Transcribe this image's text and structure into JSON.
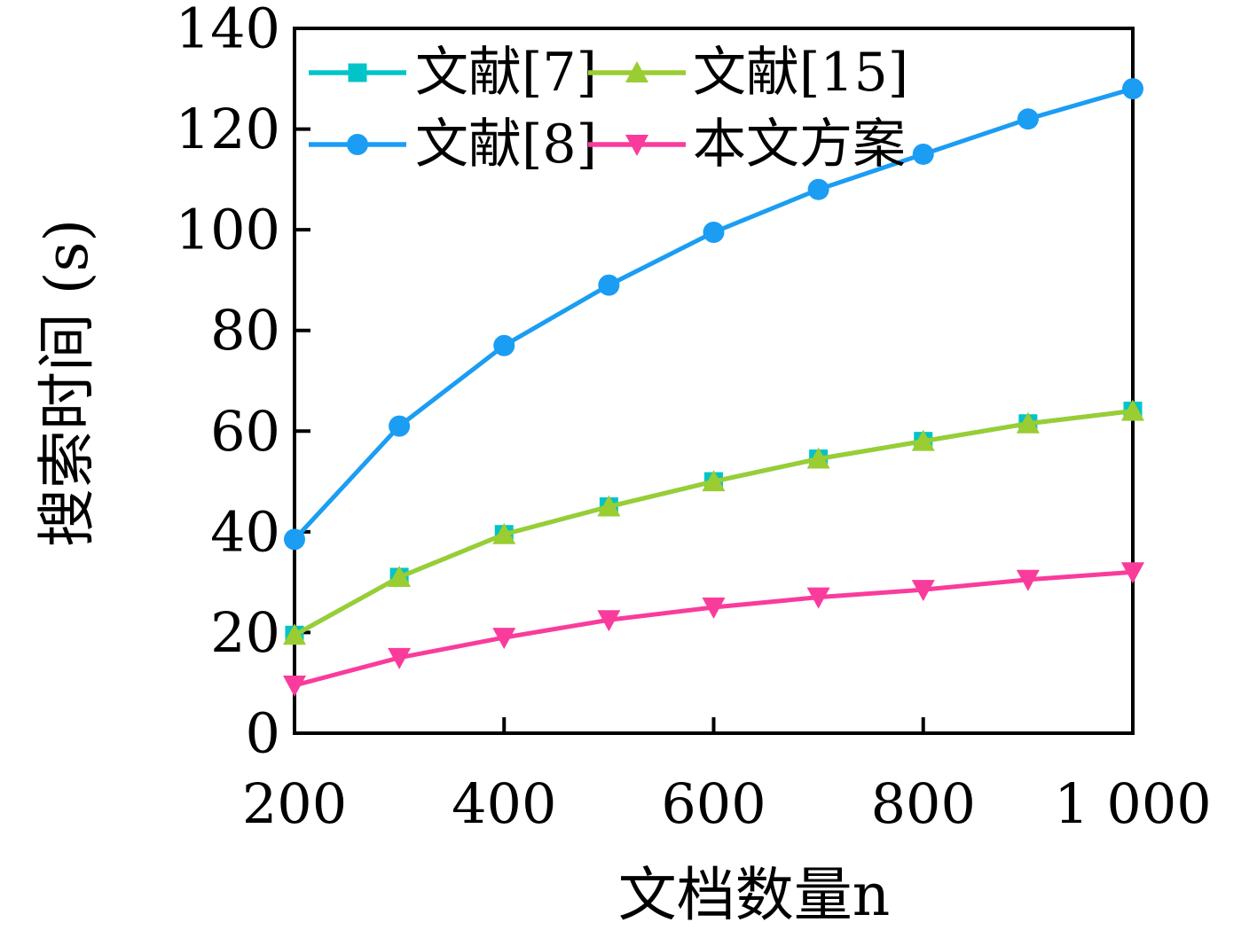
{
  "chart_data": {
    "type": "line",
    "title": "",
    "xlabel": "文档数量n",
    "ylabel": "搜索时间 (s)",
    "xlim": [
      200,
      1000
    ],
    "ylim": [
      0,
      140
    ],
    "grid": false,
    "legend_position": "top-left-inside",
    "legend_columns": 2,
    "legend_order": [
      0,
      2,
      1,
      3
    ],
    "x": [
      200,
      300,
      400,
      500,
      600,
      700,
      800,
      900,
      1000
    ],
    "x_ticks": [
      200,
      400,
      600,
      800,
      1000
    ],
    "x_tick_labels": [
      "200",
      "400",
      "600",
      "800",
      "1 000"
    ],
    "y_ticks": [
      0,
      20,
      40,
      60,
      80,
      100,
      120,
      140
    ],
    "y_tick_labels": [
      "0",
      "20",
      "40",
      "60",
      "80",
      "100",
      "120",
      "140"
    ],
    "axis_color": "#000000",
    "background": "#FFFFFF",
    "series": [
      {
        "name": "文献[7]",
        "marker": "square",
        "color": "#00C4C8",
        "values": [
          19.5,
          31,
          39.5,
          45,
          50,
          54.5,
          58,
          61.5,
          64
        ]
      },
      {
        "name": "文献[8]",
        "marker": "circle",
        "color": "#1B9DF3",
        "values": [
          38.5,
          61,
          77,
          89,
          99.5,
          108,
          115,
          122,
          128
        ]
      },
      {
        "name": "文献[15]",
        "marker": "triangle-up",
        "color": "#9ACD32",
        "values": [
          19.5,
          31,
          39.5,
          45,
          50,
          54.5,
          58,
          61.5,
          64
        ]
      },
      {
        "name": "本文方案",
        "marker": "triangle-down",
        "color": "#F93C9C",
        "values": [
          9.5,
          15,
          19,
          22.5,
          25,
          27,
          28.5,
          30.5,
          32
        ]
      }
    ]
  }
}
